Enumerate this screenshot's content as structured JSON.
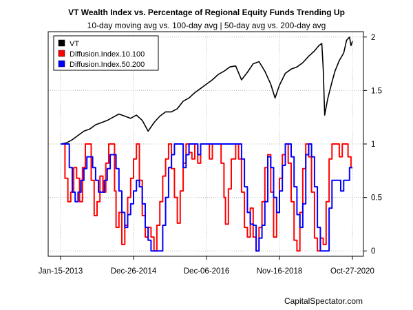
{
  "chart_data": {
    "type": "line",
    "title": "VT Wealth Index vs. Percentage of Regional Equity Funds Trending Up",
    "subtitle": "10-day moving avg vs. 100-day avg | 50-day avg vs. 200-day avg",
    "credit": "CapitalSpectator.com",
    "x_ticks": [
      "Jan-15-2013",
      "Dec-26-2014",
      "Dec-06-2016",
      "Nov-16-2018",
      "Oct-27-2020"
    ],
    "y_ticks": [
      "0",
      "0.5",
      "1",
      "1.5",
      "2"
    ],
    "ylim": [
      -0.05,
      2.05
    ],
    "grid": true,
    "legend_position": "top-left",
    "series": [
      {
        "name": "VT",
        "color": "#000000",
        "points": [
          [
            0,
            1.0
          ],
          [
            0.02,
            1.01
          ],
          [
            0.04,
            1.04
          ],
          [
            0.06,
            1.08
          ],
          [
            0.08,
            1.12
          ],
          [
            0.1,
            1.14
          ],
          [
            0.12,
            1.18
          ],
          [
            0.14,
            1.2
          ],
          [
            0.16,
            1.22
          ],
          [
            0.18,
            1.25
          ],
          [
            0.2,
            1.28
          ],
          [
            0.22,
            1.26
          ],
          [
            0.24,
            1.24
          ],
          [
            0.26,
            1.27
          ],
          [
            0.28,
            1.22
          ],
          [
            0.3,
            1.12
          ],
          [
            0.32,
            1.2
          ],
          [
            0.34,
            1.26
          ],
          [
            0.36,
            1.3
          ],
          [
            0.38,
            1.3
          ],
          [
            0.4,
            1.33
          ],
          [
            0.42,
            1.4
          ],
          [
            0.44,
            1.43
          ],
          [
            0.46,
            1.48
          ],
          [
            0.48,
            1.52
          ],
          [
            0.5,
            1.56
          ],
          [
            0.52,
            1.6
          ],
          [
            0.54,
            1.65
          ],
          [
            0.56,
            1.68
          ],
          [
            0.58,
            1.72
          ],
          [
            0.6,
            1.73
          ],
          [
            0.62,
            1.6
          ],
          [
            0.64,
            1.67
          ],
          [
            0.66,
            1.75
          ],
          [
            0.68,
            1.77
          ],
          [
            0.7,
            1.68
          ],
          [
            0.72,
            1.56
          ],
          [
            0.735,
            1.43
          ],
          [
            0.75,
            1.55
          ],
          [
            0.77,
            1.66
          ],
          [
            0.79,
            1.7
          ],
          [
            0.81,
            1.72
          ],
          [
            0.83,
            1.76
          ],
          [
            0.85,
            1.82
          ],
          [
            0.87,
            1.87
          ],
          [
            0.885,
            1.92
          ],
          [
            0.895,
            1.94
          ],
          [
            0.9,
            1.7
          ],
          [
            0.905,
            1.27
          ],
          [
            0.915,
            1.42
          ],
          [
            0.93,
            1.58
          ],
          [
            0.94,
            1.68
          ],
          [
            0.955,
            1.78
          ],
          [
            0.97,
            1.85
          ],
          [
            0.98,
            1.97
          ],
          [
            0.99,
            2.0
          ],
          [
            0.995,
            1.92
          ],
          [
            1.0,
            1.96
          ]
        ]
      },
      {
        "name": "Diffusion.Index.10.100",
        "color": "#ff0000",
        "points": [
          [
            0,
            1.0
          ],
          [
            0.01,
            1.0
          ],
          [
            0.015,
            0.68
          ],
          [
            0.025,
            0.46
          ],
          [
            0.035,
            0.55
          ],
          [
            0.045,
            0.78
          ],
          [
            0.055,
            0.68
          ],
          [
            0.065,
            0.46
          ],
          [
            0.075,
            0.78
          ],
          [
            0.085,
            1.0
          ],
          [
            0.095,
            1.0
          ],
          [
            0.105,
            0.66
          ],
          [
            0.115,
            0.33
          ],
          [
            0.125,
            0.46
          ],
          [
            0.135,
            0.7
          ],
          [
            0.145,
            0.55
          ],
          [
            0.155,
            0.82
          ],
          [
            0.165,
            1.0
          ],
          [
            0.175,
            1.0
          ],
          [
            0.185,
            0.56
          ],
          [
            0.19,
            0.22
          ],
          [
            0.2,
            0.36
          ],
          [
            0.21,
            0.06
          ],
          [
            0.22,
            0.24
          ],
          [
            0.23,
            0.5
          ],
          [
            0.24,
            0.68
          ],
          [
            0.25,
            0.86
          ],
          [
            0.26,
            1.0
          ],
          [
            0.27,
            0.66
          ],
          [
            0.28,
            0.33
          ],
          [
            0.29,
            0.13
          ],
          [
            0.3,
            0.22
          ],
          [
            0.31,
            0.13
          ],
          [
            0.32,
            0.0
          ],
          [
            0.33,
            0.24
          ],
          [
            0.34,
            0.46
          ],
          [
            0.35,
            0.7
          ],
          [
            0.36,
            0.86
          ],
          [
            0.37,
            1.0
          ],
          [
            0.38,
            0.77
          ],
          [
            0.39,
            0.5
          ],
          [
            0.4,
            0.26
          ],
          [
            0.41,
            0.56
          ],
          [
            0.42,
            0.82
          ],
          [
            0.43,
            1.0
          ],
          [
            0.44,
            0.92
          ],
          [
            0.45,
            0.86
          ],
          [
            0.46,
            1.0
          ],
          [
            0.47,
            0.82
          ],
          [
            0.48,
            1.0
          ],
          [
            0.5,
            1.0
          ],
          [
            0.51,
            0.86
          ],
          [
            0.52,
            1.0
          ],
          [
            0.54,
            1.0
          ],
          [
            0.55,
            0.82
          ],
          [
            0.56,
            0.5
          ],
          [
            0.565,
            0.25
          ],
          [
            0.575,
            0.58
          ],
          [
            0.585,
            0.86
          ],
          [
            0.6,
            1.0
          ],
          [
            0.61,
            0.86
          ],
          [
            0.62,
            0.55
          ],
          [
            0.63,
            0.22
          ],
          [
            0.64,
            0.13
          ],
          [
            0.65,
            0.4
          ],
          [
            0.66,
            0.13
          ],
          [
            0.67,
            0.0
          ],
          [
            0.68,
            0.22
          ],
          [
            0.69,
            0.46
          ],
          [
            0.7,
            0.78
          ],
          [
            0.71,
            0.9
          ],
          [
            0.72,
            0.55
          ],
          [
            0.73,
            0.13
          ],
          [
            0.74,
            0.36
          ],
          [
            0.75,
            0.68
          ],
          [
            0.76,
            0.9
          ],
          [
            0.77,
            1.0
          ],
          [
            0.78,
            0.82
          ],
          [
            0.79,
            0.46
          ],
          [
            0.8,
            0.1
          ],
          [
            0.81,
            0.0
          ],
          [
            0.82,
            0.36
          ],
          [
            0.83,
            0.77
          ],
          [
            0.84,
            1.0
          ],
          [
            0.85,
            0.88
          ],
          [
            0.86,
            0.55
          ],
          [
            0.87,
            0.12
          ],
          [
            0.88,
            0.0
          ],
          [
            0.89,
            0.12
          ],
          [
            0.9,
            0.06
          ],
          [
            0.91,
            0.46
          ],
          [
            0.92,
            0.86
          ],
          [
            0.93,
            1.0
          ],
          [
            0.945,
            1.0
          ],
          [
            0.955,
            0.88
          ],
          [
            0.965,
            1.0
          ],
          [
            0.975,
            1.0
          ],
          [
            0.985,
            0.88
          ],
          [
            0.995,
            0.78
          ],
          [
            1.0,
            0.78
          ]
        ]
      },
      {
        "name": "Diffusion.Index.50.200",
        "color": "#0000ff",
        "points": [
          [
            0,
            1.0
          ],
          [
            0.02,
            1.0
          ],
          [
            0.03,
            0.78
          ],
          [
            0.04,
            0.55
          ],
          [
            0.05,
            0.46
          ],
          [
            0.06,
            0.55
          ],
          [
            0.07,
            0.66
          ],
          [
            0.08,
            0.77
          ],
          [
            0.09,
            0.88
          ],
          [
            0.1,
            0.88
          ],
          [
            0.11,
            0.78
          ],
          [
            0.12,
            0.66
          ],
          [
            0.13,
            0.55
          ],
          [
            0.14,
            0.55
          ],
          [
            0.15,
            0.66
          ],
          [
            0.16,
            0.77
          ],
          [
            0.17,
            0.9
          ],
          [
            0.18,
            0.9
          ],
          [
            0.19,
            0.77
          ],
          [
            0.2,
            0.56
          ],
          [
            0.21,
            0.36
          ],
          [
            0.22,
            0.22
          ],
          [
            0.23,
            0.34
          ],
          [
            0.24,
            0.44
          ],
          [
            0.25,
            0.56
          ],
          [
            0.26,
            0.66
          ],
          [
            0.27,
            0.6
          ],
          [
            0.28,
            0.44
          ],
          [
            0.29,
            0.22
          ],
          [
            0.3,
            0.1
          ],
          [
            0.31,
            0.0
          ],
          [
            0.34,
            0.0
          ],
          [
            0.35,
            0.24
          ],
          [
            0.36,
            0.5
          ],
          [
            0.37,
            0.78
          ],
          [
            0.38,
            0.9
          ],
          [
            0.39,
            1.0
          ],
          [
            0.41,
            1.0
          ],
          [
            0.42,
            0.78
          ],
          [
            0.43,
            0.9
          ],
          [
            0.44,
            1.0
          ],
          [
            0.46,
            1.0
          ],
          [
            0.47,
            0.9
          ],
          [
            0.48,
            1.0
          ],
          [
            0.58,
            1.0
          ],
          [
            0.6,
            1.0
          ],
          [
            0.62,
            0.86
          ],
          [
            0.63,
            0.6
          ],
          [
            0.64,
            0.36
          ],
          [
            0.65,
            0.25
          ],
          [
            0.66,
            0.24
          ],
          [
            0.67,
            0.0
          ],
          [
            0.68,
            0.12
          ],
          [
            0.69,
            0.24
          ],
          [
            0.7,
            0.46
          ],
          [
            0.71,
            0.88
          ],
          [
            0.72,
            0.78
          ],
          [
            0.73,
            0.5
          ],
          [
            0.74,
            0.36
          ],
          [
            0.75,
            0.56
          ],
          [
            0.76,
            0.8
          ],
          [
            0.77,
            1.0
          ],
          [
            0.79,
            0.88
          ],
          [
            0.8,
            0.6
          ],
          [
            0.81,
            0.34
          ],
          [
            0.82,
            0.22
          ],
          [
            0.83,
            0.44
          ],
          [
            0.84,
            0.9
          ],
          [
            0.85,
            1.0
          ],
          [
            0.86,
            0.88
          ],
          [
            0.87,
            0.6
          ],
          [
            0.88,
            0.22
          ],
          [
            0.89,
            0.0
          ],
          [
            0.91,
            0.0
          ],
          [
            0.92,
            0.4
          ],
          [
            0.93,
            0.66
          ],
          [
            0.945,
            0.66
          ],
          [
            0.96,
            0.56
          ],
          [
            0.97,
            0.66
          ],
          [
            0.98,
            0.66
          ],
          [
            0.99,
            0.78
          ],
          [
            1.0,
            0.78
          ]
        ]
      }
    ]
  }
}
